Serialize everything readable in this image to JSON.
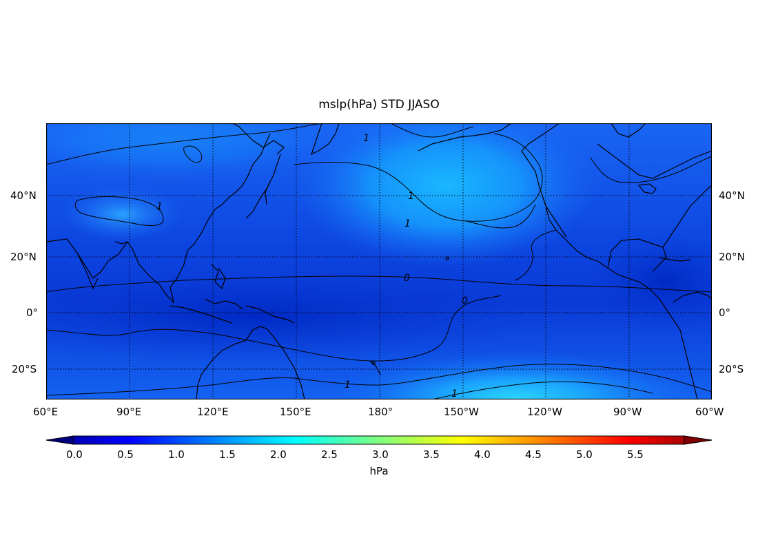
{
  "title": "mslp(hPa) STD JJASO",
  "map": {
    "lon_labels": [
      "60°E",
      "90°E",
      "120°E",
      "150°E",
      "180°",
      "150°W",
      "120°W",
      "90°W",
      "60°W"
    ],
    "lat_labels": [
      "40°N",
      "20°N",
      "0°",
      "20°S"
    ],
    "contour_labels": [
      "1",
      "1",
      "1",
      "1",
      "0",
      "0",
      "1",
      "1"
    ],
    "extent": {
      "lon": [
        60,
        300
      ],
      "lat": [
        -30,
        70
      ]
    }
  },
  "colorbar": {
    "ticks": [
      "0.0",
      "0.5",
      "1.0",
      "1.5",
      "2.0",
      "2.5",
      "3.0",
      "3.5",
      "4.0",
      "4.5",
      "5.0",
      "5.5"
    ],
    "unit": "hPa",
    "range": [
      0,
      6
    ],
    "colormap": "jet"
  }
}
